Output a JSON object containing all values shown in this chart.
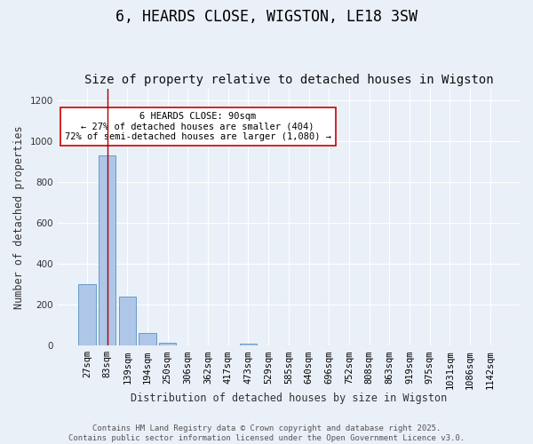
{
  "title": "6, HEARDS CLOSE, WIGSTON, LE18 3SW",
  "subtitle": "Size of property relative to detached houses in Wigston",
  "xlabel": "Distribution of detached houses by size in Wigston",
  "ylabel": "Number of detached properties",
  "bar_labels": [
    "27sqm",
    "83sqm",
    "139sqm",
    "194sqm",
    "250sqm",
    "306sqm",
    "362sqm",
    "417sqm",
    "473sqm",
    "529sqm",
    "585sqm",
    "640sqm",
    "696sqm",
    "752sqm",
    "808sqm",
    "863sqm",
    "919sqm",
    "975sqm",
    "1031sqm",
    "1086sqm",
    "1142sqm"
  ],
  "bar_values": [
    300,
    930,
    240,
    60,
    12,
    0,
    0,
    0,
    8,
    0,
    0,
    0,
    0,
    0,
    0,
    0,
    0,
    0,
    0,
    0,
    0
  ],
  "bar_color": "#aec6e8",
  "bar_edge_color": "#5a8fc0",
  "ylim": [
    0,
    1260
  ],
  "yticks": [
    0,
    200,
    400,
    600,
    800,
    1000,
    1200
  ],
  "property_line_x": 1.0,
  "property_line_color": "#aa0000",
  "annotation_text": "6 HEARDS CLOSE: 90sqm\n← 27% of detached houses are smaller (404)\n72% of semi-detached houses are larger (1,080) →",
  "footer_line1": "Contains HM Land Registry data © Crown copyright and database right 2025.",
  "footer_line2": "Contains public sector information licensed under the Open Government Licence v3.0.",
  "background_color": "#eaf0f8",
  "plot_bg_color": "#eaf0f8",
  "grid_color": "#ffffff",
  "title_fontsize": 12,
  "subtitle_fontsize": 10,
  "axis_label_fontsize": 8.5,
  "tick_fontsize": 7.5,
  "annotation_fontsize": 7.5,
  "footer_fontsize": 6.5
}
